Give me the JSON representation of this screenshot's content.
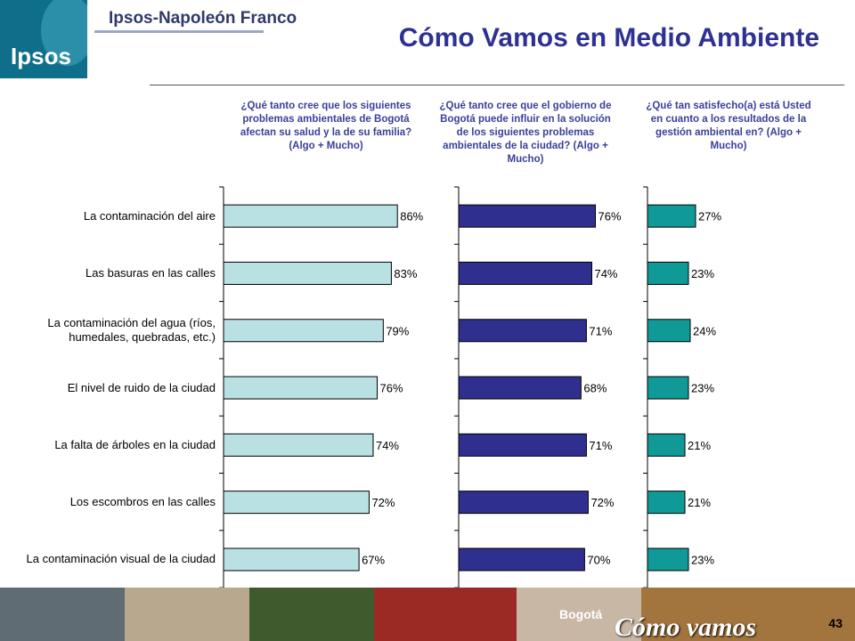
{
  "header": {
    "logo_text": "Ipsos",
    "brand": "Ipsos-Napoleón Franco",
    "title": "Cómo Vamos en Medio Ambiente"
  },
  "questions": [
    "¿Qué tanto cree que los siguientes problemas ambientales de Bogotá afectan su salud y la de su familia? (Algo + Mucho)",
    "¿Qué tanto cree que el gobierno de Bogotá puede influir en la solución de los siguientes problemas ambientales de la ciudad? (Algo + Mucho)",
    "¿Qué tan satisfecho(a) está Usted en cuanto a los resultados de la gestión ambiental en? (Algo + Mucho)"
  ],
  "chart_data": [
    {
      "type": "bar",
      "orientation": "horizontal",
      "categories": [
        "La contaminación del aire",
        "Las basuras en las calles",
        "La contaminación del agua (ríos, humedales, quebradas, etc.)",
        "El nivel de ruido de la ciudad",
        "La falta de árboles en la ciudad",
        "Los escombros en las calles",
        "La contaminación visual de la ciudad"
      ],
      "values": [
        86,
        83,
        79,
        76,
        74,
        72,
        67
      ],
      "value_labels": [
        "86%",
        "83%",
        "79%",
        "76%",
        "74%",
        "72%",
        "67%"
      ],
      "color": "#b9e0e3",
      "xlim": [
        0,
        100
      ]
    },
    {
      "type": "bar",
      "orientation": "horizontal",
      "values": [
        76,
        74,
        71,
        68,
        71,
        72,
        70
      ],
      "value_labels": [
        "76%",
        "74%",
        "71%",
        "68%",
        "71%",
        "72%",
        "70%"
      ],
      "color": "#2e2f8f",
      "xlim": [
        0,
        100
      ]
    },
    {
      "type": "bar",
      "orientation": "horizontal",
      "values": [
        27,
        23,
        24,
        23,
        21,
        21,
        23
      ],
      "value_labels": [
        "27%",
        "23%",
        "24%",
        "23%",
        "21%",
        "21%",
        "23%"
      ],
      "color": "#0f9a98",
      "xlim": [
        0,
        100
      ]
    }
  ],
  "footer": {
    "brand_small": "Bogotá",
    "brand": "Cómo vamos",
    "page_number": "43"
  }
}
